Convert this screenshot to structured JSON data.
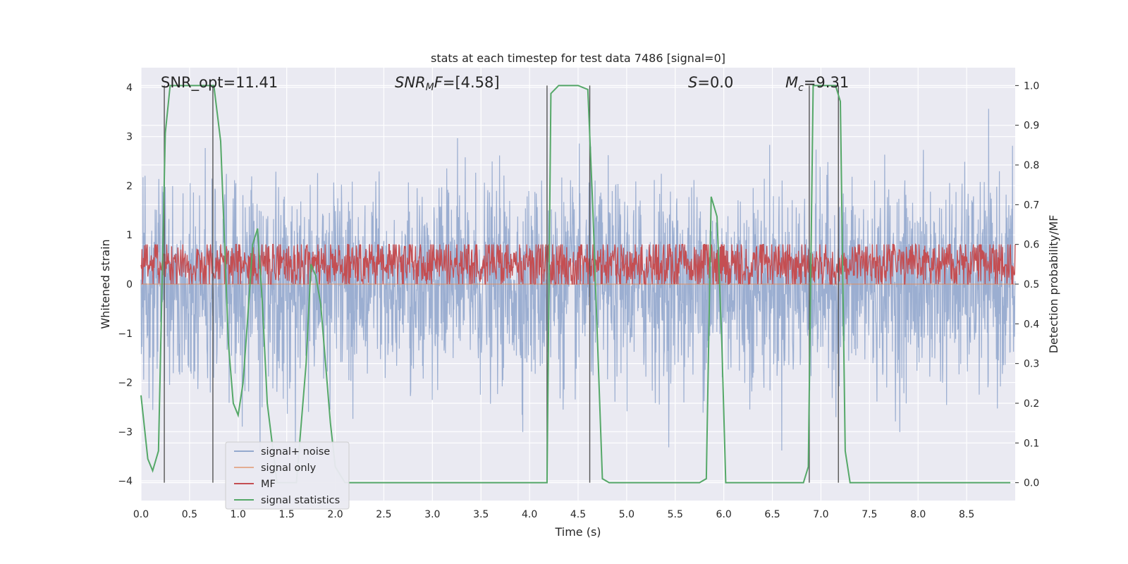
{
  "chart_data": {
    "type": "line",
    "title": "stats at each timestep for test data 7486 [signal=0]",
    "xlabel": "Time (s)",
    "ylabel_left": "Whitened strain",
    "ylabel_right": "Detection probability/MF",
    "xlim": [
      0,
      9.0
    ],
    "ylim_left": [
      -4.4,
      4.4
    ],
    "ylim_right": [
      -0.045,
      1.045
    ],
    "x_ticks": [
      "0.0",
      "0.5",
      "1.0",
      "1.5",
      "2.0",
      "2.5",
      "3.0",
      "3.5",
      "4.0",
      "4.5",
      "5.0",
      "5.5",
      "6.0",
      "6.5",
      "7.0",
      "7.5",
      "8.0",
      "8.5"
    ],
    "y_ticks_left": [
      "4",
      "3",
      "2",
      "1",
      "0",
      "−1",
      "−2",
      "−3",
      "−4"
    ],
    "y_ticks_right": [
      "1.0",
      "0.9",
      "0.8",
      "0.7",
      "0.6",
      "0.5",
      "0.4",
      "0.3",
      "0.2",
      "0.1",
      "0.0"
    ],
    "grid": true,
    "legend_position": "lower-left",
    "annotations": {
      "snr_opt": "SNR_opt=11.41",
      "snr_mf": "[4.58]",
      "s": "=0.0",
      "mc": "=9.31"
    },
    "series": [
      {
        "name": "signal+ noise",
        "color": "#4c72b0",
        "axis": "left",
        "description_envelope": [
          -2.6,
          2.6
        ]
      },
      {
        "name": "signal only",
        "color": "#dd8452",
        "axis": "left",
        "values_constant": 0.0
      },
      {
        "name": "MF",
        "color": "#c44e52",
        "axis": "right",
        "baseline": 0.55
      },
      {
        "name": "signal statistics",
        "color": "#55a868",
        "axis": "right",
        "x": [
          0.0,
          0.07,
          0.12,
          0.18,
          0.25,
          0.3,
          0.4,
          0.5,
          0.6,
          0.7,
          0.75,
          0.82,
          0.9,
          0.95,
          1.0,
          1.05,
          1.1,
          1.15,
          1.2,
          1.25,
          1.3,
          1.4,
          1.5,
          1.6,
          1.7,
          1.75,
          1.8,
          1.85,
          1.9,
          1.95,
          2.0,
          2.1,
          2.2,
          2.5,
          3.0,
          3.5,
          4.0,
          4.18,
          4.22,
          4.3,
          4.4,
          4.5,
          4.6,
          4.65,
          4.75,
          4.82,
          5.0,
          5.5,
          5.75,
          5.82,
          5.87,
          5.93,
          5.98,
          6.02,
          6.2,
          6.5,
          6.82,
          6.87,
          6.92,
          6.98,
          7.05,
          7.15,
          7.2,
          7.25,
          7.3,
          7.5,
          8.0,
          8.5,
          8.95
        ],
        "values": [
          0.22,
          0.06,
          0.03,
          0.08,
          0.88,
          1.0,
          1.0,
          1.0,
          1.0,
          1.0,
          1.0,
          0.86,
          0.35,
          0.2,
          0.17,
          0.25,
          0.42,
          0.6,
          0.64,
          0.45,
          0.2,
          0.0,
          0.0,
          0.0,
          0.3,
          0.55,
          0.52,
          0.45,
          0.3,
          0.15,
          0.04,
          0.0,
          0.0,
          0.0,
          0.0,
          0.0,
          0.0,
          0.0,
          0.98,
          1.0,
          1.0,
          1.0,
          0.99,
          0.7,
          0.01,
          0.0,
          0.0,
          0.0,
          0.0,
          0.01,
          0.72,
          0.67,
          0.35,
          0.0,
          0.0,
          0.0,
          0.0,
          0.04,
          1.0,
          1.0,
          1.0,
          1.0,
          0.96,
          0.08,
          0.0,
          0.0,
          0.0,
          0.0,
          0.0
        ]
      }
    ],
    "vertical_lines_x": [
      0.24,
      0.74,
      4.18,
      4.62,
      6.88,
      7.18
    ]
  }
}
